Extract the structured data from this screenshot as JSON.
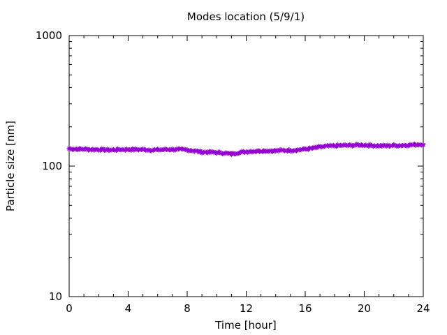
{
  "chart_data": {
    "type": "line",
    "title": "Modes location (5/9/1)",
    "xlabel": "Time [hour]",
    "ylabel": "Particle size [nm]",
    "xlim": [
      0,
      24
    ],
    "ylim": [
      10,
      1000
    ],
    "yscale": "log",
    "grid": false,
    "x_ticks": [
      0,
      4,
      8,
      12,
      16,
      20,
      24
    ],
    "x_tick_labels": [
      "0",
      "4",
      "8",
      "12",
      "16",
      "20",
      "24"
    ],
    "y_ticks": [
      10,
      100,
      1000
    ],
    "y_tick_labels": [
      "10",
      "100",
      "1000"
    ],
    "series": [
      {
        "color": "#9400d3",
        "marker": "star",
        "x": [
          0,
          0.5,
          1,
          1.5,
          2,
          2.5,
          3,
          3.5,
          4,
          4.5,
          5,
          5.5,
          6,
          6.5,
          7,
          7.5,
          8,
          8.5,
          9,
          9.5,
          10,
          10.5,
          11,
          11.5,
          12,
          12.5,
          13,
          13.5,
          14,
          14.5,
          15,
          15.5,
          16,
          16.5,
          17,
          17.5,
          18,
          18.5,
          19,
          19.5,
          20,
          20.5,
          21,
          21.5,
          22,
          22.5,
          23,
          23.5,
          24
        ],
        "y": [
          136,
          135,
          135,
          134,
          134,
          133,
          133,
          134,
          134,
          134,
          134,
          133,
          133,
          134,
          134,
          134,
          133,
          131,
          128,
          128,
          127,
          126,
          124,
          127,
          129,
          130,
          131,
          131,
          131,
          132,
          132,
          133,
          135,
          137,
          140,
          142,
          143,
          144,
          144,
          145,
          145,
          144,
          143,
          143,
          144,
          144,
          145,
          146,
          147
        ]
      }
    ]
  }
}
